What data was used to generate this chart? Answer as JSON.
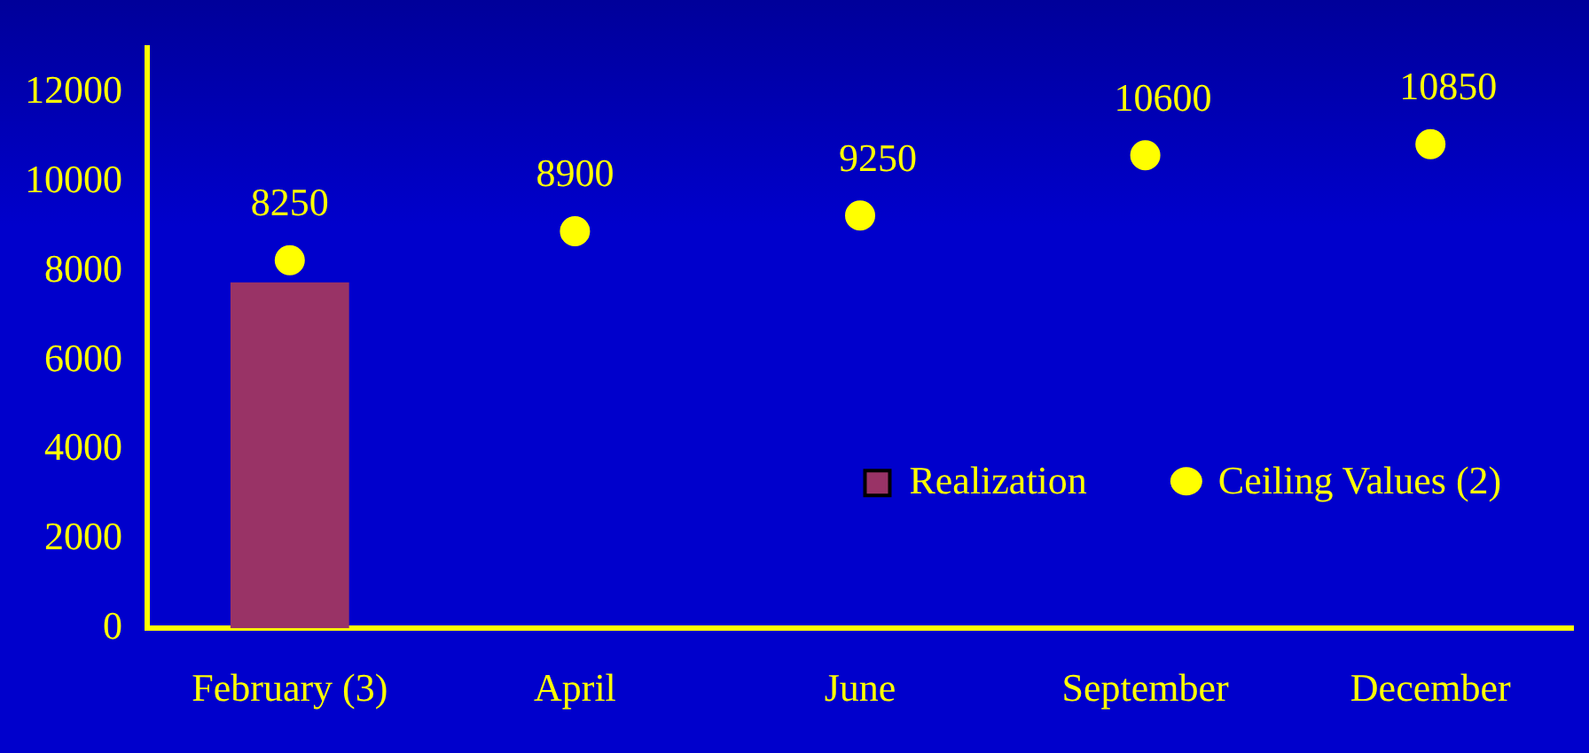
{
  "chart_data": {
    "type": "bar",
    "categories": [
      "February (3)",
      "April",
      "June",
      "September",
      "December"
    ],
    "series": [
      {
        "name": "Realization",
        "color": "#993366",
        "values": [
          7750,
          null,
          null,
          null,
          null
        ]
      },
      {
        "name": "Ceiling Values (2)",
        "type": "scatter",
        "color": "#ffff00",
        "x": [
          "February (3)",
          "April",
          "June",
          "September",
          "December"
        ],
        "values": [
          8250,
          8900,
          9250,
          10600,
          10850
        ],
        "value_labels": [
          "8250",
          "8900",
          "9250",
          "10600",
          "10850"
        ]
      }
    ],
    "ylim": [
      0,
      13000
    ],
    "yticks": [
      0,
      2000,
      4000,
      6000,
      8000,
      10000,
      12000
    ],
    "grid": false,
    "legend": "bottom right",
    "marker": "circle"
  }
}
